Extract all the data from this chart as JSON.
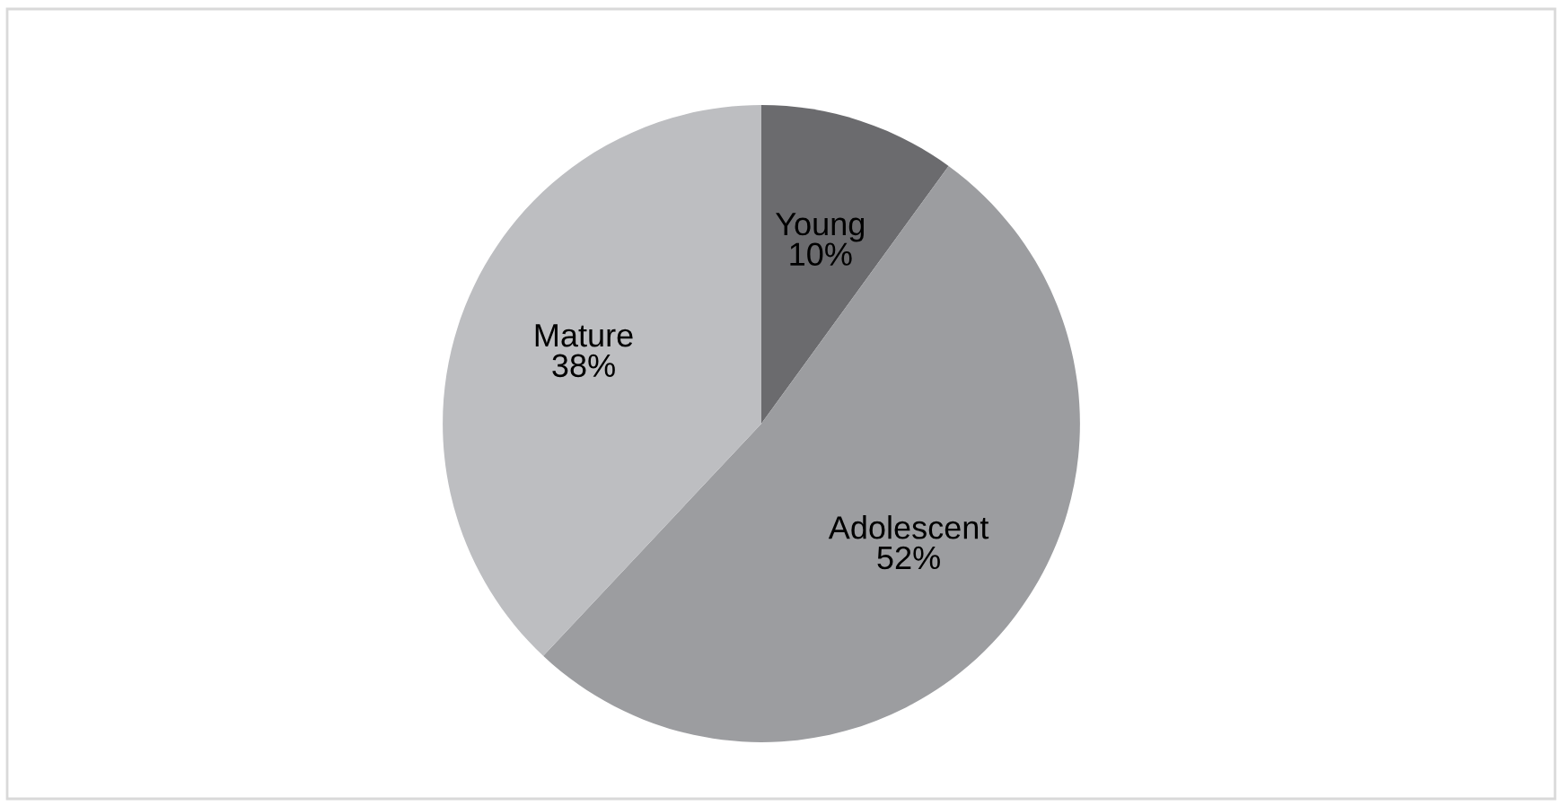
{
  "chart_data": {
    "type": "pie",
    "categories": [
      "Young",
      "Adolescent",
      "Mature"
    ],
    "values": [
      10,
      52,
      38
    ],
    "value_labels": [
      "10%",
      "52%",
      "38%"
    ],
    "colors": [
      "#6b6b6e",
      "#9c9da0",
      "#bdbec1"
    ],
    "legend": false
  }
}
